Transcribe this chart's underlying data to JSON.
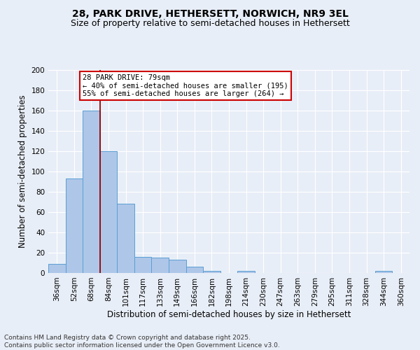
{
  "title_line1": "28, PARK DRIVE, HETHERSETT, NORWICH, NR9 3EL",
  "title_line2": "Size of property relative to semi-detached houses in Hethersett",
  "xlabel": "Distribution of semi-detached houses by size in Hethersett",
  "ylabel": "Number of semi-detached properties",
  "categories": [
    "36sqm",
    "52sqm",
    "68sqm",
    "84sqm",
    "101sqm",
    "117sqm",
    "133sqm",
    "149sqm",
    "166sqm",
    "182sqm",
    "198sqm",
    "214sqm",
    "230sqm",
    "247sqm",
    "263sqm",
    "279sqm",
    "295sqm",
    "311sqm",
    "328sqm",
    "344sqm",
    "360sqm"
  ],
  "values": [
    9,
    93,
    160,
    120,
    68,
    16,
    15,
    13,
    6,
    2,
    0,
    2,
    0,
    0,
    0,
    0,
    0,
    0,
    0,
    2,
    0
  ],
  "bar_color": "#aec6e8",
  "bar_edge_color": "#5a9fd4",
  "red_line_x": 2.5,
  "annotation_title": "28 PARK DRIVE: 79sqm",
  "annotation_line2": "← 40% of semi-detached houses are smaller (195)",
  "annotation_line3": "55% of semi-detached houses are larger (264) →",
  "annotation_box_color": "#ffffff",
  "annotation_box_edge": "#cc0000",
  "ylim": [
    0,
    200
  ],
  "yticks": [
    0,
    20,
    40,
    60,
    80,
    100,
    120,
    140,
    160,
    180,
    200
  ],
  "footer_line1": "Contains HM Land Registry data © Crown copyright and database right 2025.",
  "footer_line2": "Contains public sector information licensed under the Open Government Licence v3.0.",
  "bg_color": "#e8eef7",
  "grid_color": "#ffffff",
  "title_fontsize": 10,
  "subtitle_fontsize": 9,
  "axis_label_fontsize": 8.5,
  "tick_fontsize": 7.5,
  "annotation_fontsize": 7.5,
  "footer_fontsize": 6.5
}
